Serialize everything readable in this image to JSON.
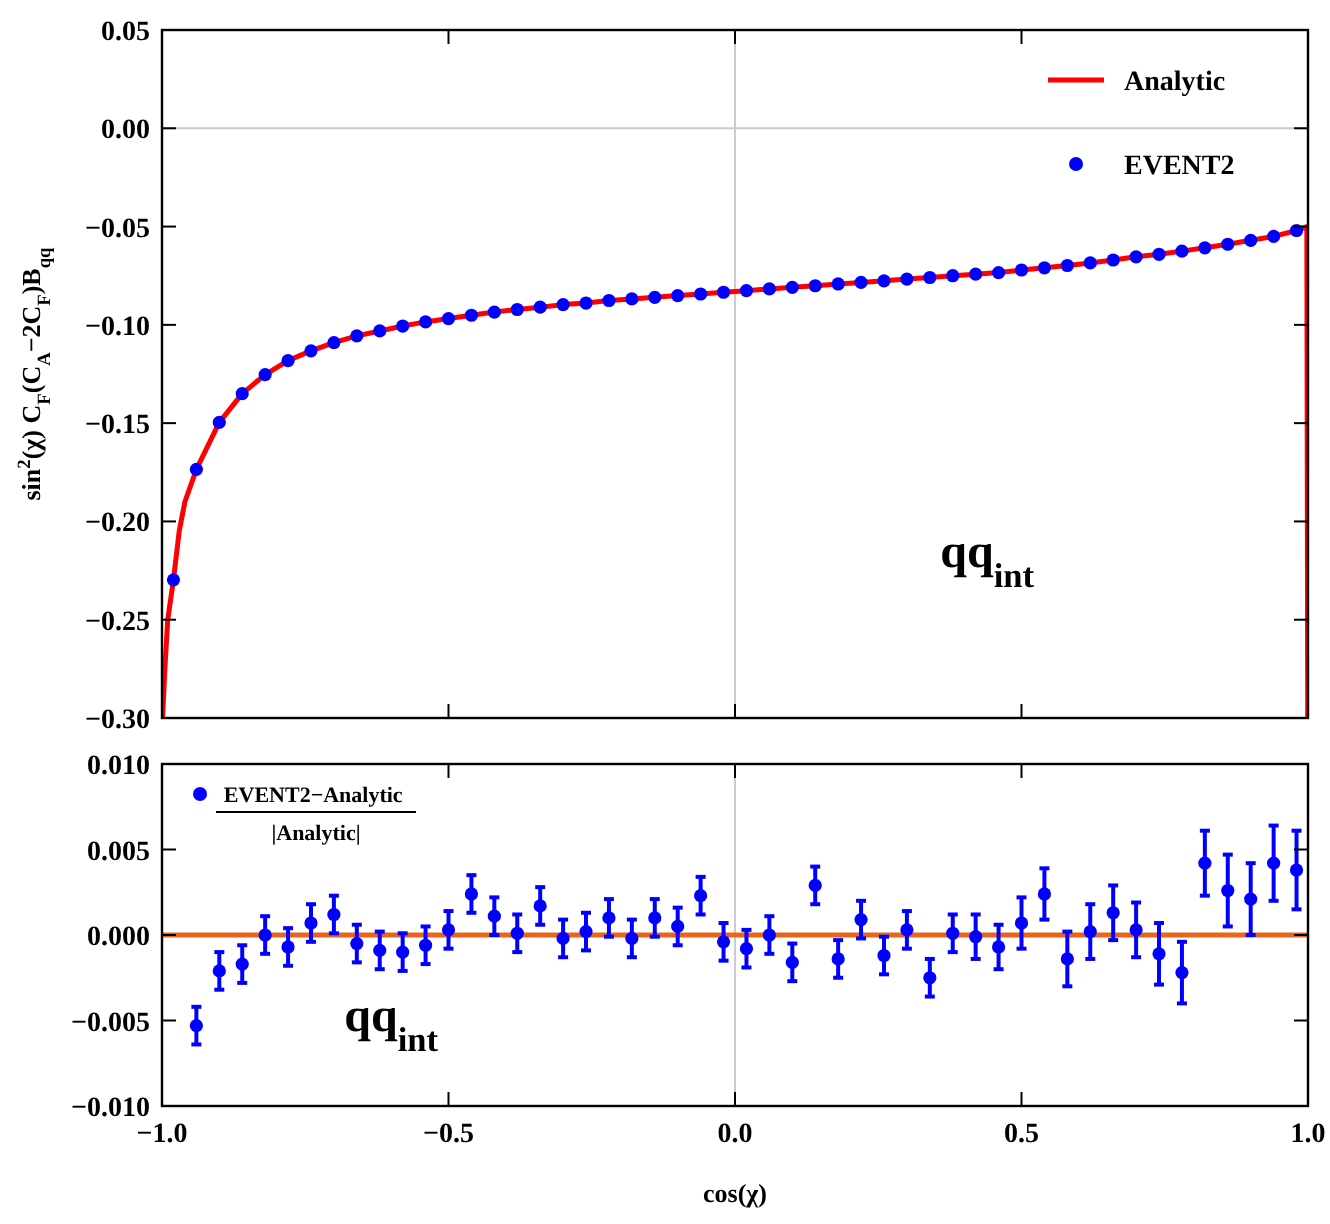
{
  "chart_data": [
    {
      "type": "scatter",
      "ylabel": "sin$^{2}$(χ) C$_{F}$(C$_{A}$−2C$_{F}$)B$_{qq}$",
      "xlim": [
        -1,
        1
      ],
      "ylim": [
        -0.3,
        0.05
      ],
      "xticks": [
        {
          "value": -1,
          "label": null
        },
        {
          "value": -0.5,
          "label": null
        },
        {
          "value": 0,
          "label": null
        },
        {
          "value": 0.5,
          "label": null
        },
        {
          "value": 1,
          "label": null
        }
      ],
      "yticks": [
        {
          "value": -0.3,
          "label": "−0.30"
        },
        {
          "value": -0.25,
          "label": "−0.25"
        },
        {
          "value": -0.2,
          "label": "−0.20"
        },
        {
          "value": -0.15,
          "label": "−0.15"
        },
        {
          "value": -0.1,
          "label": "−0.10"
        },
        {
          "value": -0.05,
          "label": "−0.05"
        },
        {
          "value": 0,
          "label": "0.00"
        },
        {
          "value": 0.05,
          "label": "0.05"
        }
      ],
      "tick_labels": "y",
      "legend": "top right",
      "annotations": [
        "qq$_{int}$"
      ],
      "ref_lines": [
        {
          "axis": "x",
          "value": 0,
          "color": "#cccccc"
        },
        {
          "axis": "y",
          "value": 0,
          "color": "#cccccc"
        }
      ],
      "series": [
        {
          "name": "Analytic",
          "type": "line",
          "color": "#ff0000",
          "marker": "none",
          "x": [
            -0.999,
            -0.995,
            -0.99,
            -0.98,
            -0.97,
            -0.96,
            -0.94,
            -0.9,
            -0.86,
            -0.82,
            -0.78,
            -0.74,
            -0.7,
            -0.66,
            -0.62,
            -0.58,
            -0.54,
            -0.5,
            -0.46,
            -0.42,
            -0.38,
            -0.34,
            -0.3,
            -0.26,
            -0.22,
            -0.18,
            -0.14,
            -0.1,
            -0.06,
            -0.02,
            0.02,
            0.06,
            0.1,
            0.14,
            0.18,
            0.22,
            0.26,
            0.3,
            0.34,
            0.38,
            0.42,
            0.46,
            0.5,
            0.54,
            0.58,
            0.62,
            0.66,
            0.7,
            0.74,
            0.78,
            0.82,
            0.86,
            0.9,
            0.94,
            0.98,
            0.998,
            0.9995
          ],
          "values": [
            -0.3,
            -0.275,
            -0.25,
            -0.2297,
            -0.205,
            -0.19,
            -0.1735,
            -0.1496,
            -0.135,
            -0.1253,
            -0.1182,
            -0.1132,
            -0.109,
            -0.1056,
            -0.1031,
            -0.1006,
            -0.0985,
            -0.0968,
            -0.0951,
            -0.0935,
            -0.0922,
            -0.091,
            -0.0897,
            -0.0889,
            -0.0876,
            -0.0868,
            -0.086,
            -0.0851,
            -0.0843,
            -0.0834,
            -0.0826,
            -0.0817,
            -0.0809,
            -0.0801,
            -0.0792,
            -0.0784,
            -0.0776,
            -0.0767,
            -0.0759,
            -0.075,
            -0.0742,
            -0.0734,
            -0.0721,
            -0.071,
            -0.0698,
            -0.0685,
            -0.067,
            -0.0654,
            -0.0641,
            -0.0625,
            -0.0608,
            -0.059,
            -0.057,
            -0.055,
            -0.052,
            -0.05,
            -0.3
          ]
        },
        {
          "name": "EVENT2",
          "color": "#0000ff",
          "marker": "circle",
          "x": [
            -0.98,
            -0.94,
            -0.9,
            -0.86,
            -0.82,
            -0.78,
            -0.74,
            -0.7,
            -0.66,
            -0.62,
            -0.58,
            -0.54,
            -0.5,
            -0.46,
            -0.42,
            -0.38,
            -0.34,
            -0.3,
            -0.26,
            -0.22,
            -0.18,
            -0.14,
            -0.1,
            -0.06,
            -0.02,
            0.02,
            0.06,
            0.1,
            0.14,
            0.18,
            0.22,
            0.26,
            0.3,
            0.34,
            0.38,
            0.42,
            0.46,
            0.5,
            0.54,
            0.58,
            0.62,
            0.66,
            0.7,
            0.74,
            0.78,
            0.82,
            0.86,
            0.9,
            0.94,
            0.98
          ],
          "values": [
            -0.2297,
            -0.1735,
            -0.1496,
            -0.135,
            -0.1253,
            -0.1182,
            -0.1132,
            -0.109,
            -0.1056,
            -0.1031,
            -0.1006,
            -0.0985,
            -0.0968,
            -0.0951,
            -0.0935,
            -0.0922,
            -0.091,
            -0.0897,
            -0.0889,
            -0.0876,
            -0.0868,
            -0.086,
            -0.0851,
            -0.0843,
            -0.0834,
            -0.0826,
            -0.0817,
            -0.0809,
            -0.0801,
            -0.0792,
            -0.0784,
            -0.0776,
            -0.0767,
            -0.0759,
            -0.075,
            -0.0742,
            -0.0734,
            -0.0721,
            -0.071,
            -0.0698,
            -0.0685,
            -0.067,
            -0.0654,
            -0.0641,
            -0.0625,
            -0.0608,
            -0.059,
            -0.057,
            -0.055,
            -0.052
          ]
        }
      ]
    },
    {
      "type": "scatter",
      "xlabel": "cos(χ)",
      "xlim": [
        -1,
        1
      ],
      "ylim": [
        -0.01,
        0.01
      ],
      "xticks": [
        {
          "value": -1,
          "label": "−1.0"
        },
        {
          "value": -0.5,
          "label": "−0.5"
        },
        {
          "value": 0,
          "label": "0.0"
        },
        {
          "value": 0.5,
          "label": "0.5"
        },
        {
          "value": 1,
          "label": "1.0"
        }
      ],
      "yticks": [
        {
          "value": -0.01,
          "label": "−0.010"
        },
        {
          "value": -0.005,
          "label": "−0.005"
        },
        {
          "value": 0,
          "label": "0.000"
        },
        {
          "value": 0.005,
          "label": "0.005"
        },
        {
          "value": 0.01,
          "label": "0.010"
        }
      ],
      "legend": "top left",
      "annotations": [
        "qq$_{int}$"
      ],
      "ref_lines": [
        {
          "axis": "x",
          "value": 0,
          "color": "#cccccc"
        },
        {
          "axis": "y",
          "value": 0,
          "color": "#e8661c"
        }
      ],
      "series": [
        {
          "name": "EVENT2−Analytic |Analytic|",
          "color": "#0000ff",
          "marker": "circle",
          "x": [
            -0.94,
            -0.9,
            -0.86,
            -0.82,
            -0.78,
            -0.74,
            -0.7,
            -0.66,
            -0.62,
            -0.58,
            -0.54,
            -0.5,
            -0.46,
            -0.42,
            -0.38,
            -0.34,
            -0.3,
            -0.26,
            -0.22,
            -0.18,
            -0.14,
            -0.1,
            -0.06,
            -0.02,
            0.02,
            0.06,
            0.1,
            0.14,
            0.18,
            0.22,
            0.26,
            0.3,
            0.34,
            0.38,
            0.42,
            0.46,
            0.5,
            0.54,
            0.58,
            0.62,
            0.66,
            0.7,
            0.74,
            0.78,
            0.82,
            0.86,
            0.9,
            0.94,
            0.98
          ],
          "values": [
            -0.0053,
            -0.0021,
            -0.0017,
            0.0,
            -0.0007,
            0.0007,
            0.0012,
            -0.0005,
            -0.0009,
            -0.001,
            -0.0006,
            0.0003,
            0.0024,
            0.0011,
            0.0001,
            0.0017,
            -0.0002,
            0.0002,
            0.001,
            -0.0002,
            0.001,
            0.0005,
            0.0023,
            -0.0004,
            -0.0008,
            0.0,
            -0.0016,
            0.0029,
            -0.0014,
            0.0009,
            -0.0012,
            0.0003,
            -0.0025,
            0.0001,
            -0.0001,
            -0.0007,
            0.0007,
            0.0024,
            -0.0014,
            0.0002,
            0.0013,
            0.0003,
            -0.0011,
            -0.0022,
            0.0042,
            0.0026,
            0.0021,
            0.0042,
            0.0038
          ],
          "errors": [
            0.0011,
            0.0011,
            0.0011,
            0.0011,
            0.0011,
            0.0011,
            0.0011,
            0.0011,
            0.0011,
            0.0011,
            0.0011,
            0.0011,
            0.0011,
            0.0011,
            0.0011,
            0.0011,
            0.0011,
            0.0011,
            0.0011,
            0.0011,
            0.0011,
            0.0011,
            0.0011,
            0.0011,
            0.0011,
            0.0011,
            0.0011,
            0.0011,
            0.0011,
            0.0011,
            0.0011,
            0.0011,
            0.0011,
            0.0011,
            0.0013,
            0.0013,
            0.0015,
            0.0015,
            0.0016,
            0.0016,
            0.0016,
            0.0016,
            0.0018,
            0.0018,
            0.0019,
            0.0021,
            0.0021,
            0.0022,
            0.0023
          ]
        }
      ]
    }
  ]
}
